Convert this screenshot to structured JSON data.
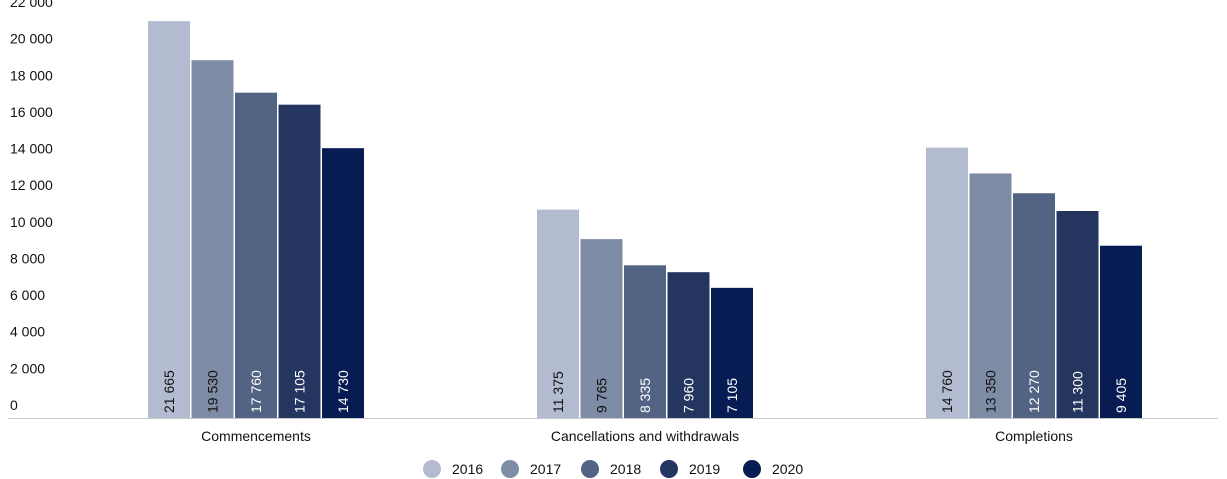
{
  "chart_data": {
    "type": "bar",
    "title": "",
    "xlabel": "",
    "ylabel": "",
    "categories": [
      "Commencements",
      "Cancellations and withdrawals",
      "Completions"
    ],
    "series": [
      {
        "name": "2016",
        "color": "#b3bbd0",
        "label_color": "#111111",
        "values": [
          21665,
          11375,
          14760
        ],
        "labels": [
          "21 665",
          "11 375",
          "14 760"
        ]
      },
      {
        "name": "2017",
        "color": "#7f8ca6",
        "label_color": "#111111",
        "values": [
          19530,
          9765,
          13350
        ],
        "labels": [
          "19 530",
          "9 765",
          "13 350"
        ]
      },
      {
        "name": "2018",
        "color": "#536384",
        "label_color": "#ffffff",
        "values": [
          17760,
          8335,
          12270
        ],
        "labels": [
          "17 760",
          "8 335",
          "12 270"
        ]
      },
      {
        "name": "2019",
        "color": "#243560",
        "label_color": "#ffffff",
        "values": [
          17105,
          7960,
          11300
        ],
        "labels": [
          "17 105",
          "7 960",
          "11 300"
        ]
      },
      {
        "name": "2020",
        "color": "#061c52",
        "label_color": "#ffffff",
        "values": [
          14730,
          7105,
          9405
        ],
        "labels": [
          "14 730",
          "7 105",
          "9 405"
        ]
      }
    ],
    "ylim": [
      0,
      22000
    ],
    "yticks": [
      0,
      2000,
      4000,
      6000,
      8000,
      10000,
      12000,
      14000,
      16000,
      18000,
      20000,
      22000
    ],
    "ytick_labels": [
      "0",
      "2 000",
      "4 000",
      "6 000",
      "8 000",
      "10 000",
      "12 000",
      "14 000",
      "16 000",
      "18 000",
      "20 000",
      "22 000"
    ],
    "grid": false,
    "legend_position": "bottom-center"
  }
}
